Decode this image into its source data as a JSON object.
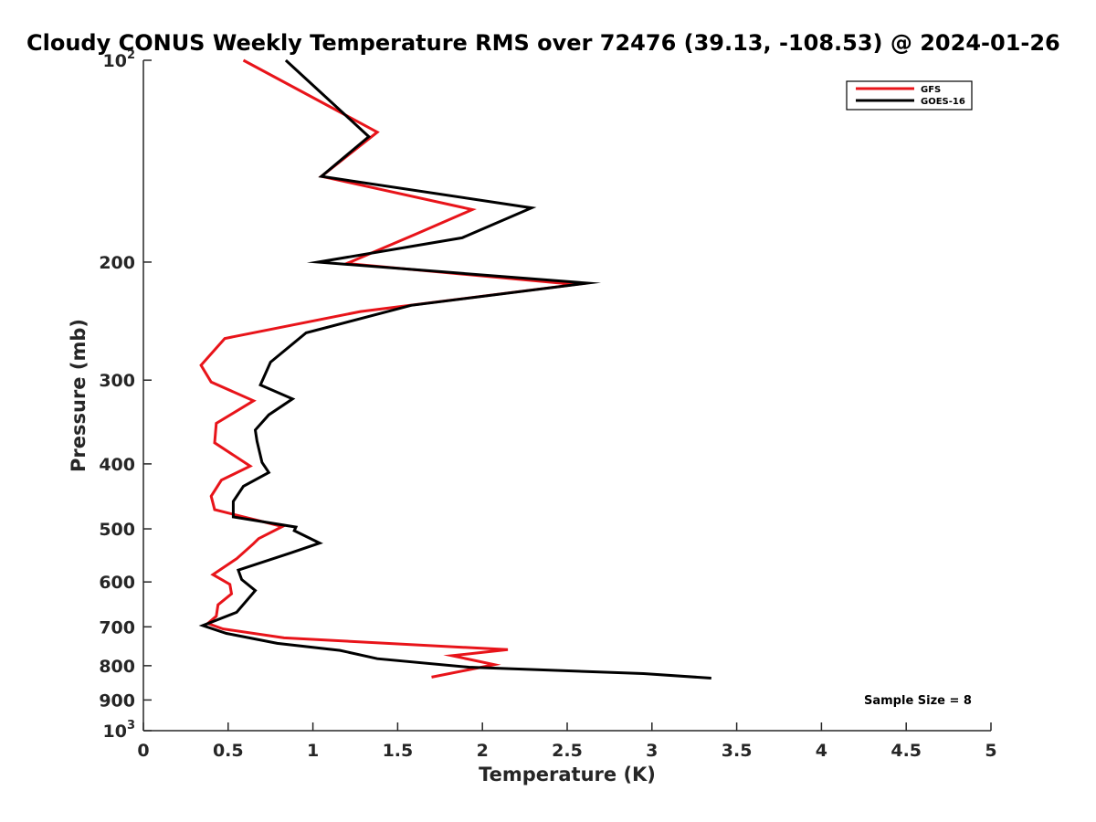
{
  "chart_data": {
    "type": "line",
    "title": "Cloudy CONUS Weekly Temperature RMS over 72476 (39.13, -108.53) @ 2024-01-26",
    "xlabel": "Temperature (K)",
    "ylabel": "Pressure (mb)",
    "xlim": [
      0,
      5
    ],
    "ylim": [
      100,
      1000
    ],
    "y_scale": "log",
    "y_reversed": true,
    "grid": false,
    "legend_position": "top-right",
    "x_ticks": [
      {
        "value": 0,
        "label": "0"
      },
      {
        "value": 0.5,
        "label": "0.5"
      },
      {
        "value": 1,
        "label": "1"
      },
      {
        "value": 1.5,
        "label": "1.5"
      },
      {
        "value": 2,
        "label": "2"
      },
      {
        "value": 2.5,
        "label": "2.5"
      },
      {
        "value": 3,
        "label": "3"
      },
      {
        "value": 3.5,
        "label": "3.5"
      },
      {
        "value": 4,
        "label": "4"
      },
      {
        "value": 4.5,
        "label": "4.5"
      },
      {
        "value": 5,
        "label": "5"
      }
    ],
    "y_ticks": [
      {
        "value": 100,
        "base": "10",
        "exp": "2"
      },
      {
        "value": 200,
        "label": "200"
      },
      {
        "value": 300,
        "label": "300"
      },
      {
        "value": 400,
        "label": "400"
      },
      {
        "value": 500,
        "label": "500"
      },
      {
        "value": 600,
        "label": "600"
      },
      {
        "value": 700,
        "label": "700"
      },
      {
        "value": 800,
        "label": "800"
      },
      {
        "value": 900,
        "label": "900"
      },
      {
        "value": 1000,
        "base": "10",
        "exp": "3"
      }
    ],
    "series": [
      {
        "name": "GFS",
        "color": "#e8141a",
        "x": [
          0.59,
          1.38,
          1.05,
          1.94,
          1.6,
          1.2,
          2.55,
          1.28,
          0.48,
          0.34,
          0.4,
          0.65,
          0.43,
          0.42,
          0.63,
          0.46,
          0.4,
          0.42,
          0.82,
          0.68,
          0.65,
          0.55,
          0.41,
          0.51,
          0.52,
          0.44,
          0.43,
          0.38,
          0.47,
          0.83,
          2.15,
          1.82,
          2.07,
          1.7
        ],
        "y": [
          100,
          128,
          149,
          167,
          182,
          201,
          216,
          237,
          260,
          285,
          302,
          322,
          348,
          372,
          403,
          423,
          447,
          468,
          496,
          517,
          526,
          554,
          585,
          605,
          625,
          649,
          675,
          692,
          705,
          727,
          757,
          773,
          797,
          832
        ]
      },
      {
        "name": "GOES-16",
        "color": "#000000",
        "x": [
          0.84,
          1.33,
          1.05,
          2.29,
          1.88,
          1.03,
          2.62,
          1.58,
          0.96,
          0.75,
          0.69,
          0.88,
          0.74,
          0.66,
          0.67,
          0.7,
          0.74,
          0.59,
          0.53,
          0.53,
          0.9,
          0.89,
          1.04,
          0.87,
          0.56,
          0.58,
          0.66,
          0.55,
          0.35,
          0.49,
          0.79,
          1.16,
          1.38,
          1.92,
          2.95,
          3.35
        ],
        "y": [
          100,
          130,
          149,
          166,
          184,
          200,
          215,
          232,
          255,
          282,
          305,
          320,
          338,
          356,
          370,
          398,
          412,
          432,
          455,
          480,
          497,
          503,
          525,
          543,
          576,
          595,
          618,
          666,
          697,
          716,
          741,
          759,
          781,
          804,
          822,
          835
        ]
      }
    ],
    "annotations": [
      {
        "text": "Sample Size = 8"
      }
    ]
  }
}
